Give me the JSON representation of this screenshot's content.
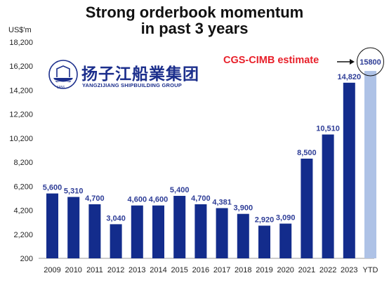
{
  "title_line1": "Strong orderbook momentum",
  "title_line2": "in past 3 years",
  "logo": {
    "chinese": "扬子江船業集团",
    "english": "YANGZIJIANG SHIPBUILDING GROUP",
    "year": "1956"
  },
  "annotation": {
    "estimate_label": "CGS-CIMB estimate",
    "estimate_value": "15800"
  },
  "colors": {
    "bar_actual": "#132c8c",
    "bar_estimate": "#aec2e6",
    "label_actual": "#2e3d97",
    "axis_text": "#222222",
    "estimate_text": "#e8202a"
  },
  "chart_data": {
    "type": "bar",
    "ylabel": "US$'m",
    "ylim": [
      200,
      18200
    ],
    "yticks": [
      "200",
      "2,200",
      "4,200",
      "6,200",
      "8,200",
      "10,200",
      "12,200",
      "14,200",
      "16,200",
      "18,200"
    ],
    "categories": [
      "2009",
      "2010",
      "2011",
      "2012",
      "2013",
      "2014",
      "2015",
      "2016",
      "2017",
      "2018",
      "2019",
      "2020",
      "2021",
      "2022",
      "2023",
      "YTD"
    ],
    "values": [
      5600,
      5310,
      4700,
      3040,
      4600,
      4600,
      5400,
      4700,
      4381,
      3900,
      2920,
      3090,
      8500,
      10510,
      14820,
      15800
    ],
    "data_labels": [
      "5,600",
      "5,310",
      "4,700",
      "3,040",
      "4,600",
      "4,600",
      "5,400",
      "4,700",
      "4,381",
      "3,900",
      "2,920",
      "3,090",
      "8,500",
      "10,510",
      "14,820",
      ""
    ],
    "estimate_index": 15,
    "grid": false,
    "legend": "none"
  }
}
